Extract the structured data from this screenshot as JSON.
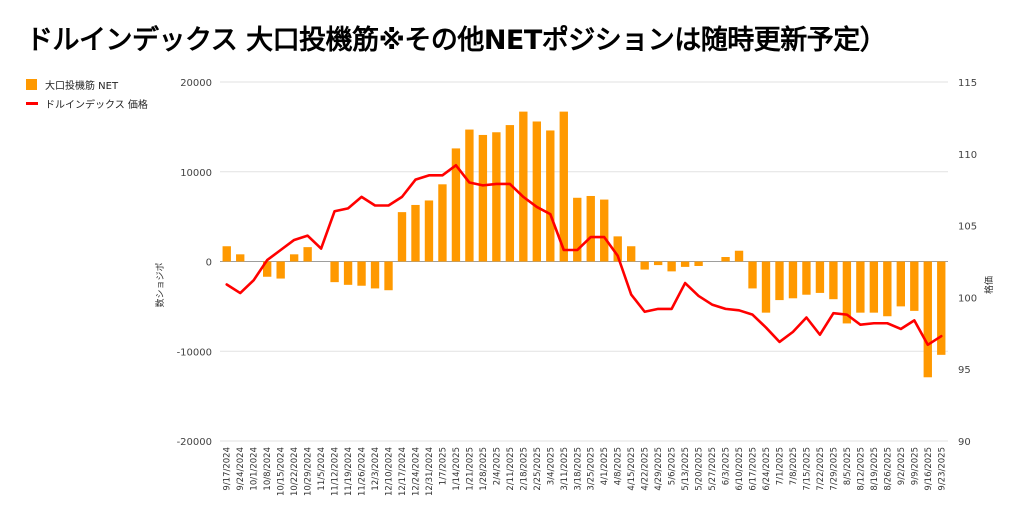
{
  "chart_data": {
    "type": "bar+line",
    "title": "ドルインデックス 大口投機筋※その他NETポジションは随時更新予定）",
    "categories": [
      "9/17/2024",
      "9/24/2024",
      "10/1/2024",
      "10/8/2024",
      "10/15/2024",
      "10/22/2024",
      "10/29/2024",
      "11/5/2024",
      "11/12/2024",
      "11/19/2024",
      "11/26/2024",
      "12/3/2024",
      "12/10/2024",
      "12/17/2024",
      "12/24/2024",
      "12/31/2024",
      "1/7/2025",
      "1/14/2025",
      "1/21/2025",
      "1/28/2025",
      "2/4/2025",
      "2/11/2025",
      "2/18/2025",
      "2/25/2025",
      "3/4/2025",
      "3/11/2025",
      "3/18/2025",
      "3/25/2025",
      "4/1/2025",
      "4/8/2025",
      "4/15/2025",
      "4/22/2025",
      "4/29/2025",
      "5/6/2025",
      "5/13/2025",
      "5/20/2025",
      "5/27/2025",
      "6/3/2025",
      "6/10/2025",
      "6/17/2025",
      "6/24/2025",
      "7/1/2025",
      "7/8/2025",
      "7/15/2025",
      "7/22/2025",
      "7/29/2025",
      "8/5/2025",
      "8/12/2025",
      "8/19/2025",
      "8/26/2025",
      "9/2/2025",
      "9/9/2025",
      "9/16/2025",
      "9/23/2025"
    ],
    "series": [
      {
        "name": "大口投機筋 NET",
        "type": "bar",
        "axis": "left",
        "color": "#ff9900",
        "values": [
          1700,
          800,
          0,
          -1700,
          -1900,
          800,
          1600,
          0,
          -2300,
          -2600,
          -2700,
          -3000,
          -3200,
          5500,
          6300,
          6800,
          8600,
          12600,
          14700,
          14100,
          14400,
          15200,
          16700,
          15600,
          14600,
          16700,
          7100,
          7300,
          6900,
          2800,
          1700,
          -900,
          -400,
          -1100,
          -600,
          -500,
          0,
          500,
          1200,
          -3000,
          -5700,
          -4300,
          -4100,
          -3700,
          -3500,
          -4200,
          -6900,
          -5700,
          -5700,
          -6100,
          -5000,
          -5500,
          -12900,
          -10400
        ]
      },
      {
        "name": "ドルインデックス 価格",
        "type": "line",
        "axis": "right",
        "color": "#ff0000",
        "values": [
          100.9,
          100.3,
          101.2,
          102.6,
          103.3,
          104.0,
          104.3,
          103.4,
          106.0,
          106.2,
          107.0,
          106.4,
          106.4,
          107.0,
          108.2,
          108.5,
          108.5,
          109.2,
          108.0,
          107.8,
          107.9,
          107.9,
          107.0,
          106.3,
          105.8,
          103.3,
          103.3,
          104.2,
          104.2,
          102.9,
          100.2,
          99.0,
          99.2,
          99.2,
          101.0,
          100.1,
          99.5,
          99.2,
          99.1,
          98.8,
          97.9,
          96.9,
          97.6,
          98.6,
          97.4,
          98.9,
          98.8,
          98.1,
          98.2,
          98.2,
          97.8,
          98.4,
          96.7,
          97.3
        ]
      }
    ],
    "ylim_left": [
      -20000,
      20000
    ],
    "ylim_right": [
      90,
      115
    ],
    "yticks_left": [
      "-20000",
      "-10000",
      "0",
      "10000",
      "20000"
    ],
    "yticks_right": [
      "90",
      "95",
      "100",
      "105",
      "110",
      "115"
    ],
    "ylabel_left": "数ショジポ",
    "ylabel_right": "格価",
    "grid": true,
    "legend": "top-left"
  },
  "colors": {
    "bar": "#ff9900",
    "line": "#ff0000",
    "grid": "#e2e2e2",
    "axis_text": "#444444"
  }
}
